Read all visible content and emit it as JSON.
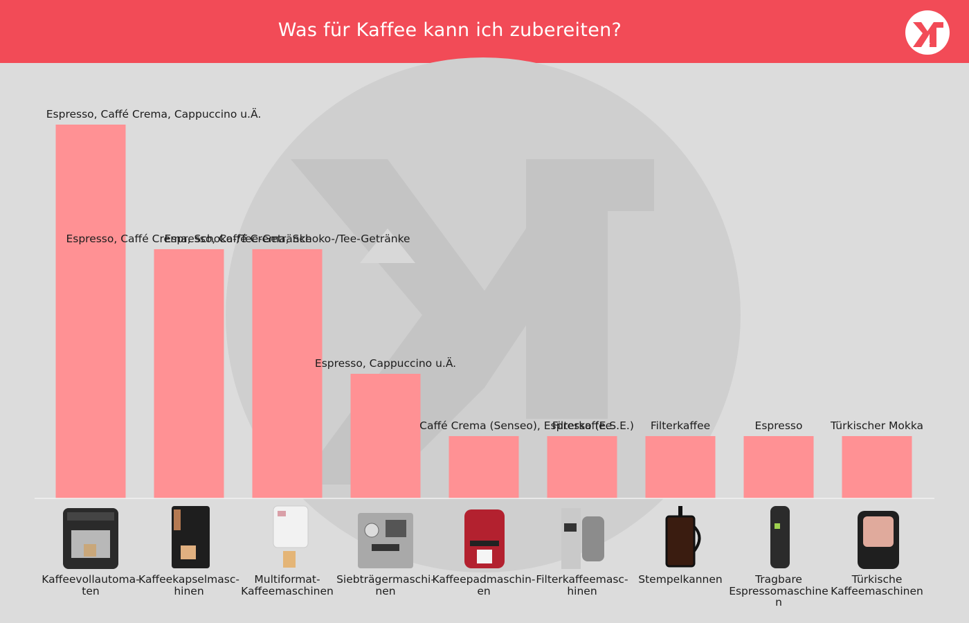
{
  "header": {
    "title": "Was für Kaffee kann ich zubereiten?"
  },
  "colors": {
    "header": "#f24b57",
    "bar": "#ff9194",
    "background": "#dcdcdc",
    "watermark": "#cbcbcb"
  },
  "chart_data": {
    "type": "bar",
    "title": "Was für Kaffee kann ich zubereiten?",
    "xlabel": "",
    "ylabel": "",
    "categories": [
      "Kaffeevollautoma-ten",
      "Kaffeekapselmasc-hinen",
      "Multiformat-Kaffeemaschinen",
      "Siebträgermaschi-nen",
      "Kaffeepadmaschin-en",
      "Filterkaffeemasc-hinen",
      "Stempelkannen",
      "Tragbare Espressomaschinen",
      "Türkische Kaffeemaschinen"
    ],
    "values": [
      3,
      2,
      2,
      1,
      0.5,
      0.5,
      0.5,
      0.5,
      0.5
    ],
    "value_labels": [
      "Espresso, Caffé Crema, Cappuccino u.Ä.",
      "Espresso, Caffé Crema, Schoko-/Tee-Getränke",
      "Espresso, Caffé Crema, Schoko-/Tee-Getränke",
      "Espresso, Cappuccino u.Ä.",
      "Caffé Crema (Senseo), Espresso (E.S.E.)",
      "Filterkaffee",
      "Filterkaffee",
      "Espresso",
      "Türkischer Mokka"
    ],
    "ylim": [
      0,
      3
    ],
    "grid": false,
    "legend": "none"
  }
}
